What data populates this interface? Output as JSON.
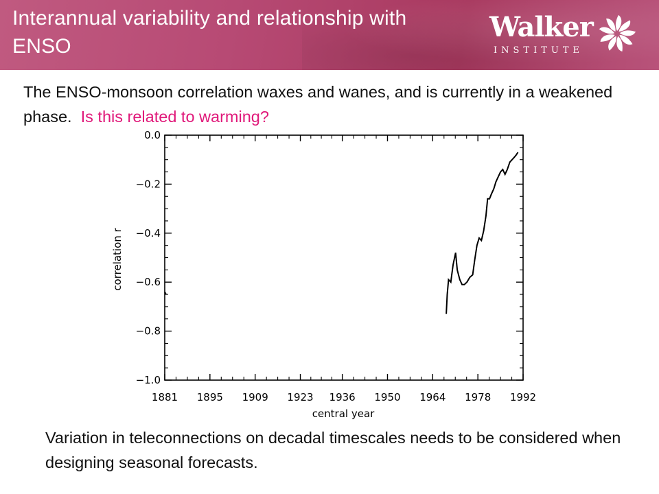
{
  "header": {
    "title": "Interannual variability and relationship with ENSO",
    "logo": {
      "name": "Walker",
      "subtitle": "INSTITUTE",
      "mark_icon": "walker-flower-icon"
    },
    "colors": {
      "band": "#b74a74"
    }
  },
  "intro": {
    "text": "The ENSO-monsoon correlation waxes and wanes, and is currently in a weakened phase.",
    "question": "Is this related to warming?",
    "accent_color": "#e0197a"
  },
  "chart_data": {
    "type": "line",
    "title": "",
    "xlabel": "central year",
    "ylabel": "correlation r",
    "xlim": [
      1881,
      1992
    ],
    "ylim": [
      -1.0,
      0.0
    ],
    "x_ticks": [
      1881,
      1895,
      1909,
      1923,
      1936,
      1950,
      1964,
      1978,
      1992
    ],
    "x_tick_labels": [
      "1881",
      "1895",
      "1909",
      "1923",
      "1936",
      "1950",
      "1964",
      "1978",
      "1992"
    ],
    "y_ticks": [
      0.0,
      -0.2,
      -0.4,
      -0.6,
      -0.8,
      -1.0
    ],
    "y_tick_labels": [
      "0.0",
      "−0.2",
      "−0.4",
      "−0.6",
      "−0.8",
      "−1.0"
    ],
    "grid": false,
    "series": [
      {
        "x": [
          1881,
          1881.4
        ],
        "y": [
          -0.64,
          -0.65
        ]
      },
      {
        "x": [
          1968.2,
          1968.5,
          1968.9,
          1969.6,
          1970.3,
          1971.1,
          1971.6,
          1972.4,
          1973.1,
          1973.8,
          1974.6,
          1975.5,
          1976.4,
          1977.0,
          1977.7,
          1978.4,
          1979.1,
          1979.8,
          1980.5,
          1981.0,
          1981.6,
          1982.2,
          1982.9,
          1983.6,
          1984.3,
          1985.0,
          1985.7,
          1986.4,
          1987.1,
          1987.9,
          1988.6,
          1989.3,
          1989.9,
          1990.4
        ],
        "y": [
          -0.73,
          -0.65,
          -0.59,
          -0.6,
          -0.53,
          -0.48,
          -0.55,
          -0.59,
          -0.61,
          -0.61,
          -0.6,
          -0.58,
          -0.57,
          -0.51,
          -0.45,
          -0.42,
          -0.43,
          -0.39,
          -0.33,
          -0.26,
          -0.26,
          -0.24,
          -0.22,
          -0.19,
          -0.17,
          -0.15,
          -0.14,
          -0.16,
          -0.14,
          -0.11,
          -0.1,
          -0.09,
          -0.08,
          -0.07
        ]
      }
    ]
  },
  "conclusion": {
    "text": "Variation in teleconnections on decadal timescales needs to be considered when designing seasonal forecasts."
  }
}
